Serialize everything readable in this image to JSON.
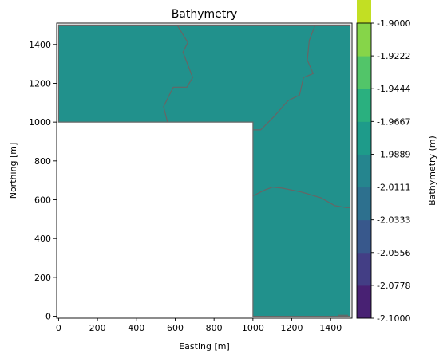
{
  "chart_data": {
    "type": "heatmap",
    "title": "Bathymetry",
    "xlabel": "Easting [m]",
    "ylabel": "Northing [m]",
    "xlim": [
      -10,
      1510
    ],
    "ylim": [
      -10,
      1510
    ],
    "xticks": [
      0,
      200,
      400,
      600,
      800,
      1000,
      1200,
      1400
    ],
    "yticks": [
      0,
      200,
      400,
      600,
      800,
      1000,
      1200,
      1400
    ],
    "fill_color": "#21918c",
    "masked_region": {
      "x": [
        0,
        1000
      ],
      "y": [
        0,
        1000
      ]
    },
    "domain_outline": [
      [
        0,
        1500
      ],
      [
        1500,
        1500
      ],
      [
        1500,
        0
      ],
      [
        1000,
        0
      ],
      [
        1000,
        1000
      ],
      [
        0,
        1000
      ]
    ],
    "contour_color": "#666666",
    "contours": [
      [
        [
          610,
          1500
        ],
        [
          665,
          1410
        ],
        [
          640,
          1360
        ],
        [
          690,
          1230
        ],
        [
          660,
          1180
        ],
        [
          590,
          1180
        ],
        [
          540,
          1080
        ],
        [
          560,
          1000
        ]
      ],
      [
        [
          1320,
          1500
        ],
        [
          1290,
          1420
        ],
        [
          1280,
          1320
        ],
        [
          1310,
          1250
        ],
        [
          1260,
          1230
        ],
        [
          1240,
          1140
        ],
        [
          1180,
          1110
        ],
        [
          1110,
          1030
        ],
        [
          1040,
          960
        ],
        [
          1000,
          960
        ]
      ],
      [
        [
          1000,
          620
        ],
        [
          1060,
          650
        ],
        [
          1100,
          665
        ],
        [
          1150,
          660
        ],
        [
          1250,
          640
        ],
        [
          1350,
          610
        ],
        [
          1420,
          570
        ],
        [
          1480,
          560
        ],
        [
          1500,
          560
        ]
      ],
      [
        [
          1440,
          5
        ],
        [
          1490,
          5
        ]
      ]
    ],
    "colorbar": {
      "label": "Bathymetry (m)",
      "tick_labels": [
        "-2.1000",
        "-2.0778",
        "-2.0556",
        "-2.0333",
        "-2.0111",
        "-1.9889",
        "-1.9667",
        "-1.9444",
        "-1.9222",
        "-1.9000"
      ],
      "tick_values": [
        -2.1,
        -2.0778,
        -2.0556,
        -2.0333,
        -2.0111,
        -1.9889,
        -1.9667,
        -1.9444,
        -1.9222,
        -1.9
      ],
      "colors": [
        "#482173",
        "#433e85",
        "#38588c",
        "#2d708e",
        "#25858e",
        "#1e9b8a",
        "#2ab07f",
        "#52c569",
        "#86d549",
        "#c2df23"
      ],
      "end_colors": {
        "under": "#440154",
        "over": "#fde725"
      }
    }
  }
}
